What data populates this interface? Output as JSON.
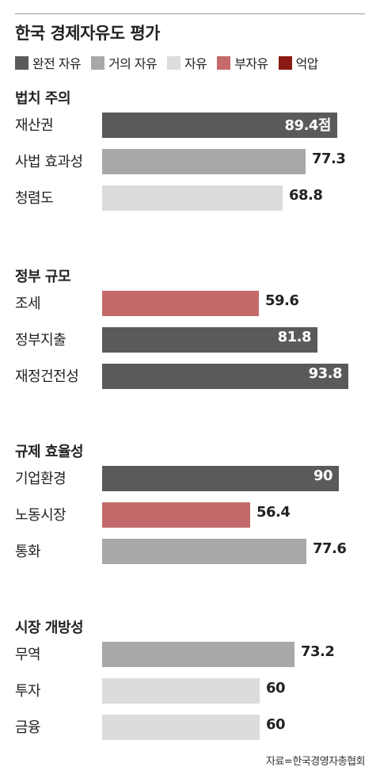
{
  "title": "한국 경제자유도 평가",
  "legend": [
    {
      "label": "완전 자유",
      "color": "#5a5a5a"
    },
    {
      "label": "거의 자유",
      "color": "#a8a8a8"
    },
    {
      "label": "자유",
      "color": "#dcdcdc"
    },
    {
      "label": "부자유",
      "color": "#c46a6a"
    },
    {
      "label": "억압",
      "color": "#8b1a14"
    }
  ],
  "source": "자료=한국경영자총협회",
  "chart_data": {
    "type": "bar",
    "orientation": "horizontal",
    "xlim": [
      0,
      100
    ],
    "groups": [
      {
        "name": "법치 주의",
        "items": [
          {
            "label": "재산권",
            "value": 89.4,
            "display": "89.4점",
            "category": "완전 자유"
          },
          {
            "label": "사법 효과성",
            "value": 77.3,
            "display": "77.3",
            "category": "거의 자유"
          },
          {
            "label": "청렴도",
            "value": 68.8,
            "display": "68.8",
            "category": "자유"
          }
        ]
      },
      {
        "name": "정부 규모",
        "items": [
          {
            "label": "조세",
            "value": 59.6,
            "display": "59.6",
            "category": "부자유"
          },
          {
            "label": "정부지출",
            "value": 81.8,
            "display": "81.8",
            "category": "완전 자유"
          },
          {
            "label": "재정건전성",
            "value": 93.8,
            "display": "93.8",
            "category": "완전 자유"
          }
        ]
      },
      {
        "name": "규제 효율성",
        "items": [
          {
            "label": "기업환경",
            "value": 90,
            "display": "90",
            "category": "완전 자유"
          },
          {
            "label": "노동시장",
            "value": 56.4,
            "display": "56.4",
            "category": "부자유"
          },
          {
            "label": "통화",
            "value": 77.6,
            "display": "77.6",
            "category": "거의 자유"
          }
        ]
      },
      {
        "name": "시장 개방성",
        "items": [
          {
            "label": "무역",
            "value": 73.2,
            "display": "73.2",
            "category": "거의 자유"
          },
          {
            "label": "투자",
            "value": 60,
            "display": "60",
            "category": "자유"
          },
          {
            "label": "금융",
            "value": 60,
            "display": "60",
            "category": "자유"
          }
        ]
      }
    ]
  }
}
